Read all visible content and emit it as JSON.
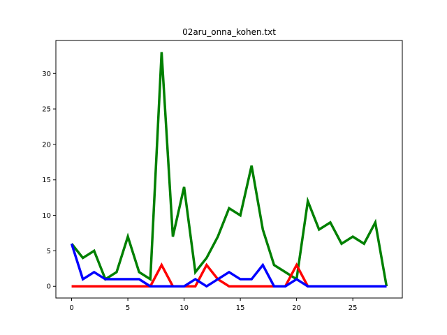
{
  "chart_data": {
    "type": "line",
    "title": "02aru_onna_kohen.txt",
    "xlabel": "",
    "ylabel": "",
    "xlim": [
      -1.4,
      29.4
    ],
    "ylim": [
      -1.65,
      34.65
    ],
    "xticks": [
      0,
      5,
      10,
      15,
      20,
      25
    ],
    "yticks": [
      0,
      5,
      10,
      15,
      20,
      25,
      30
    ],
    "grid": false,
    "x": [
      0,
      1,
      2,
      3,
      4,
      5,
      6,
      7,
      8,
      9,
      10,
      11,
      12,
      13,
      14,
      15,
      16,
      17,
      18,
      19,
      20,
      21,
      22,
      23,
      24,
      25,
      26,
      27,
      28
    ],
    "series": [
      {
        "color": "#008000",
        "values": [
          6,
          4,
          5,
          1,
          2,
          7,
          2,
          1,
          33,
          7,
          14,
          2,
          4,
          7,
          11,
          10,
          17,
          8,
          3,
          2,
          1,
          12,
          8,
          9,
          6,
          7,
          6,
          9,
          0
        ]
      },
      {
        "color": "#ff0000",
        "values": [
          0,
          0,
          0,
          0,
          0,
          0,
          0,
          0,
          3,
          0,
          0,
          0,
          3,
          1,
          0,
          0,
          0,
          0,
          0,
          0,
          3,
          0,
          0,
          0,
          0,
          0,
          0,
          0,
          0
        ]
      },
      {
        "color": "#0000ff",
        "values": [
          6,
          1,
          2,
          1,
          1,
          1,
          1,
          0,
          0,
          0,
          0,
          1,
          0,
          1,
          2,
          1,
          1,
          3,
          0,
          0,
          1,
          0,
          0,
          0,
          0,
          0,
          0,
          0,
          0
        ]
      }
    ]
  }
}
